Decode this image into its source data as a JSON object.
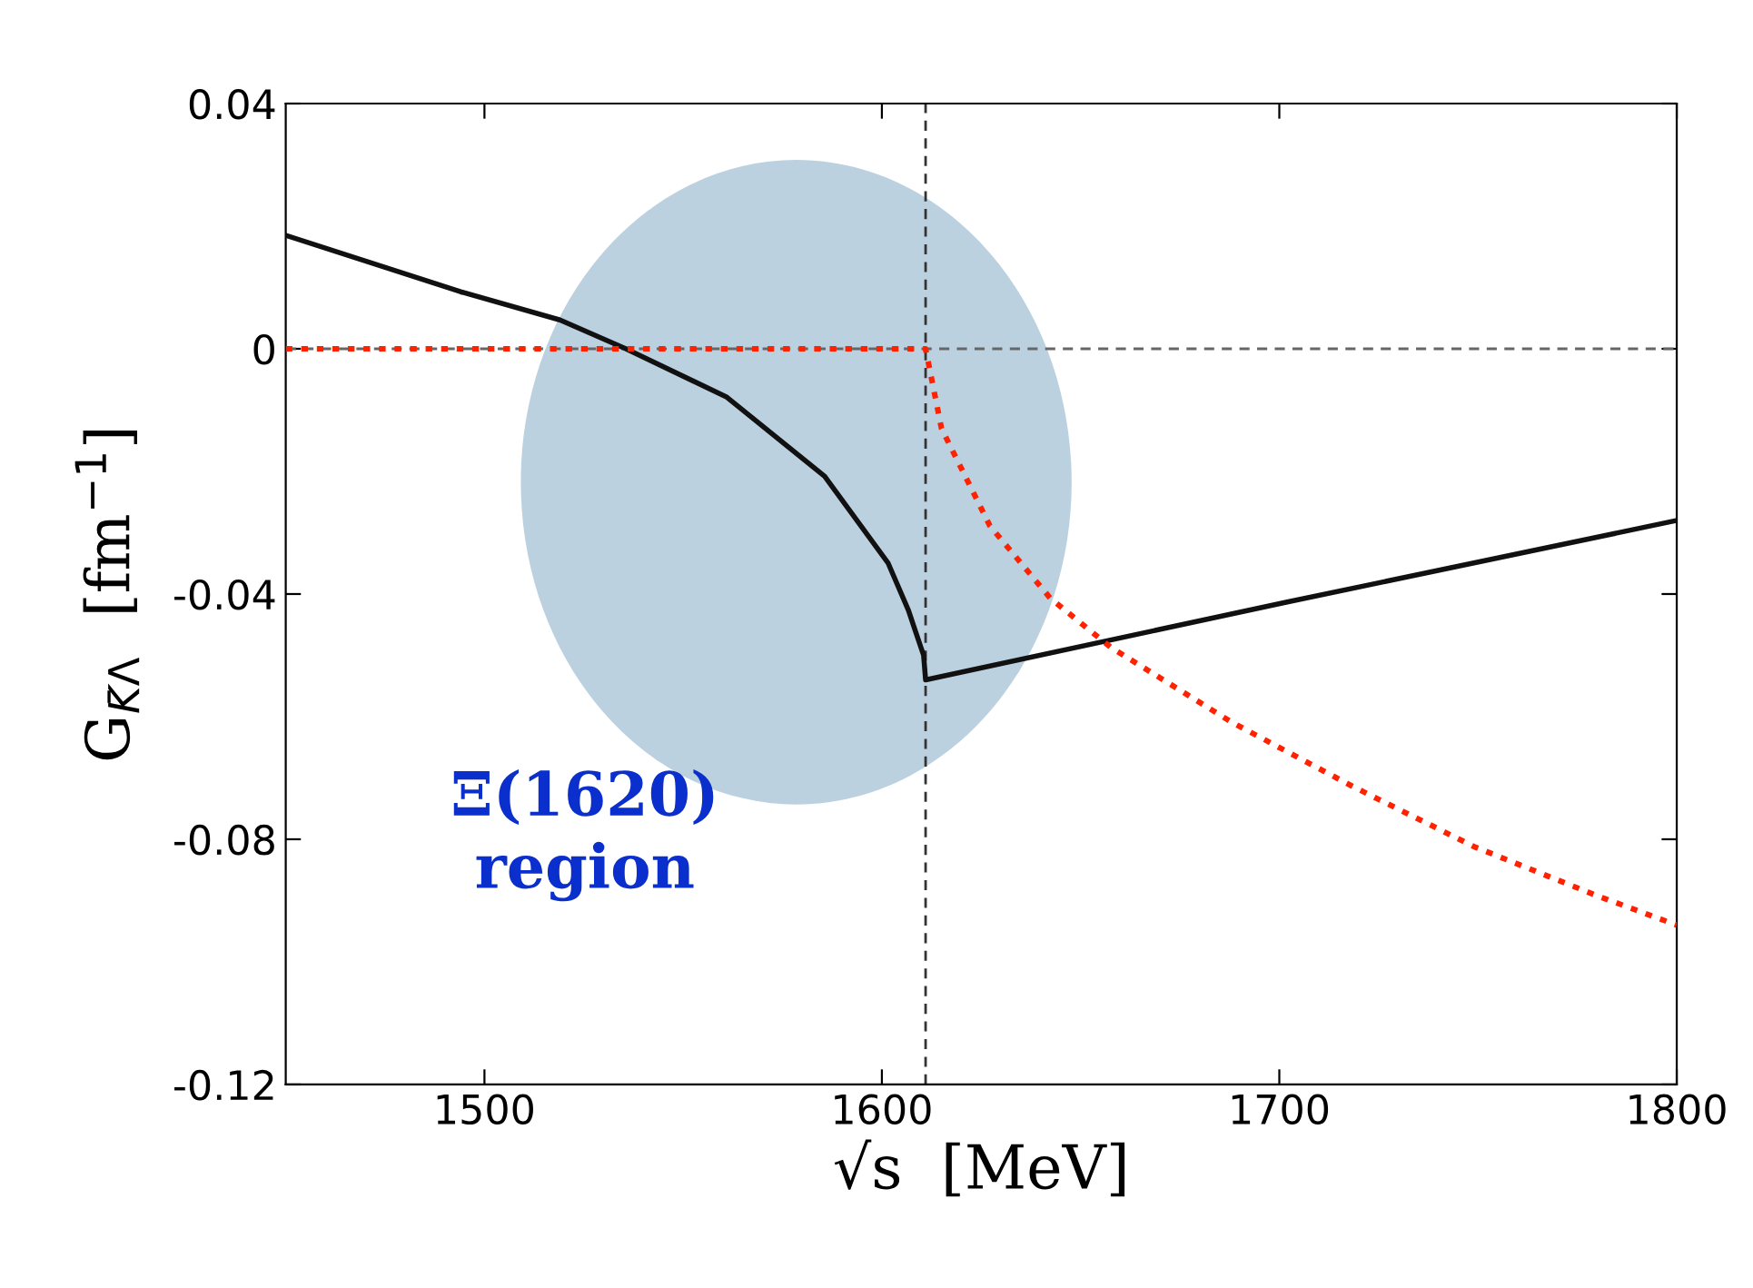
{
  "chart_data": {
    "type": "line",
    "xlabel": "√s  [MeV]",
    "ylabel": "G$_{K̄Λ}$  [fm$^{−1}$]",
    "xlim": [
      1450,
      1800
    ],
    "xticks": [
      1500,
      1600,
      1700,
      1800
    ],
    "ylim": [
      -0.12,
      0.04
    ],
    "yticks": [
      -0.12,
      -0.08,
      -0.04,
      0,
      0.04
    ],
    "grid": false,
    "series": [
      {
        "color": "#111111",
        "line_style": "solid",
        "x": [
          1450,
          1494,
          1519,
          1535.6,
          1561,
          1585.6,
          1601.6,
          1606.7,
          1608.4,
          1610.5,
          1611,
          1702,
          1800
        ],
        "values": [
          0.0185,
          0.0093,
          0.0047,
          0,
          -0.0079,
          -0.0208,
          -0.035,
          -0.0427,
          -0.046,
          -0.05,
          -0.054,
          -0.0413,
          -0.028
        ]
      },
      {
        "color": "#ff2200",
        "line_style": "dotted",
        "x": [
          1450,
          1611,
          1615,
          1627.2,
          1642.4,
          1657.6,
          1688,
          1718.5,
          1749,
          1779.5,
          1800
        ],
        "values": [
          0,
          0,
          -0.013,
          -0.0289,
          -0.0407,
          -0.0487,
          -0.0609,
          -0.0714,
          -0.0812,
          -0.0891,
          -0.094
        ]
      }
    ],
    "ref_lines": [
      {
        "axis": "y",
        "value": 0,
        "color": "#666666",
        "line_style": "dashed"
      },
      {
        "axis": "x",
        "value": 1611,
        "color": "#333333",
        "line_style": "dashed"
      }
    ],
    "annotations": [
      "Ξ(1620)\nregion"
    ]
  }
}
